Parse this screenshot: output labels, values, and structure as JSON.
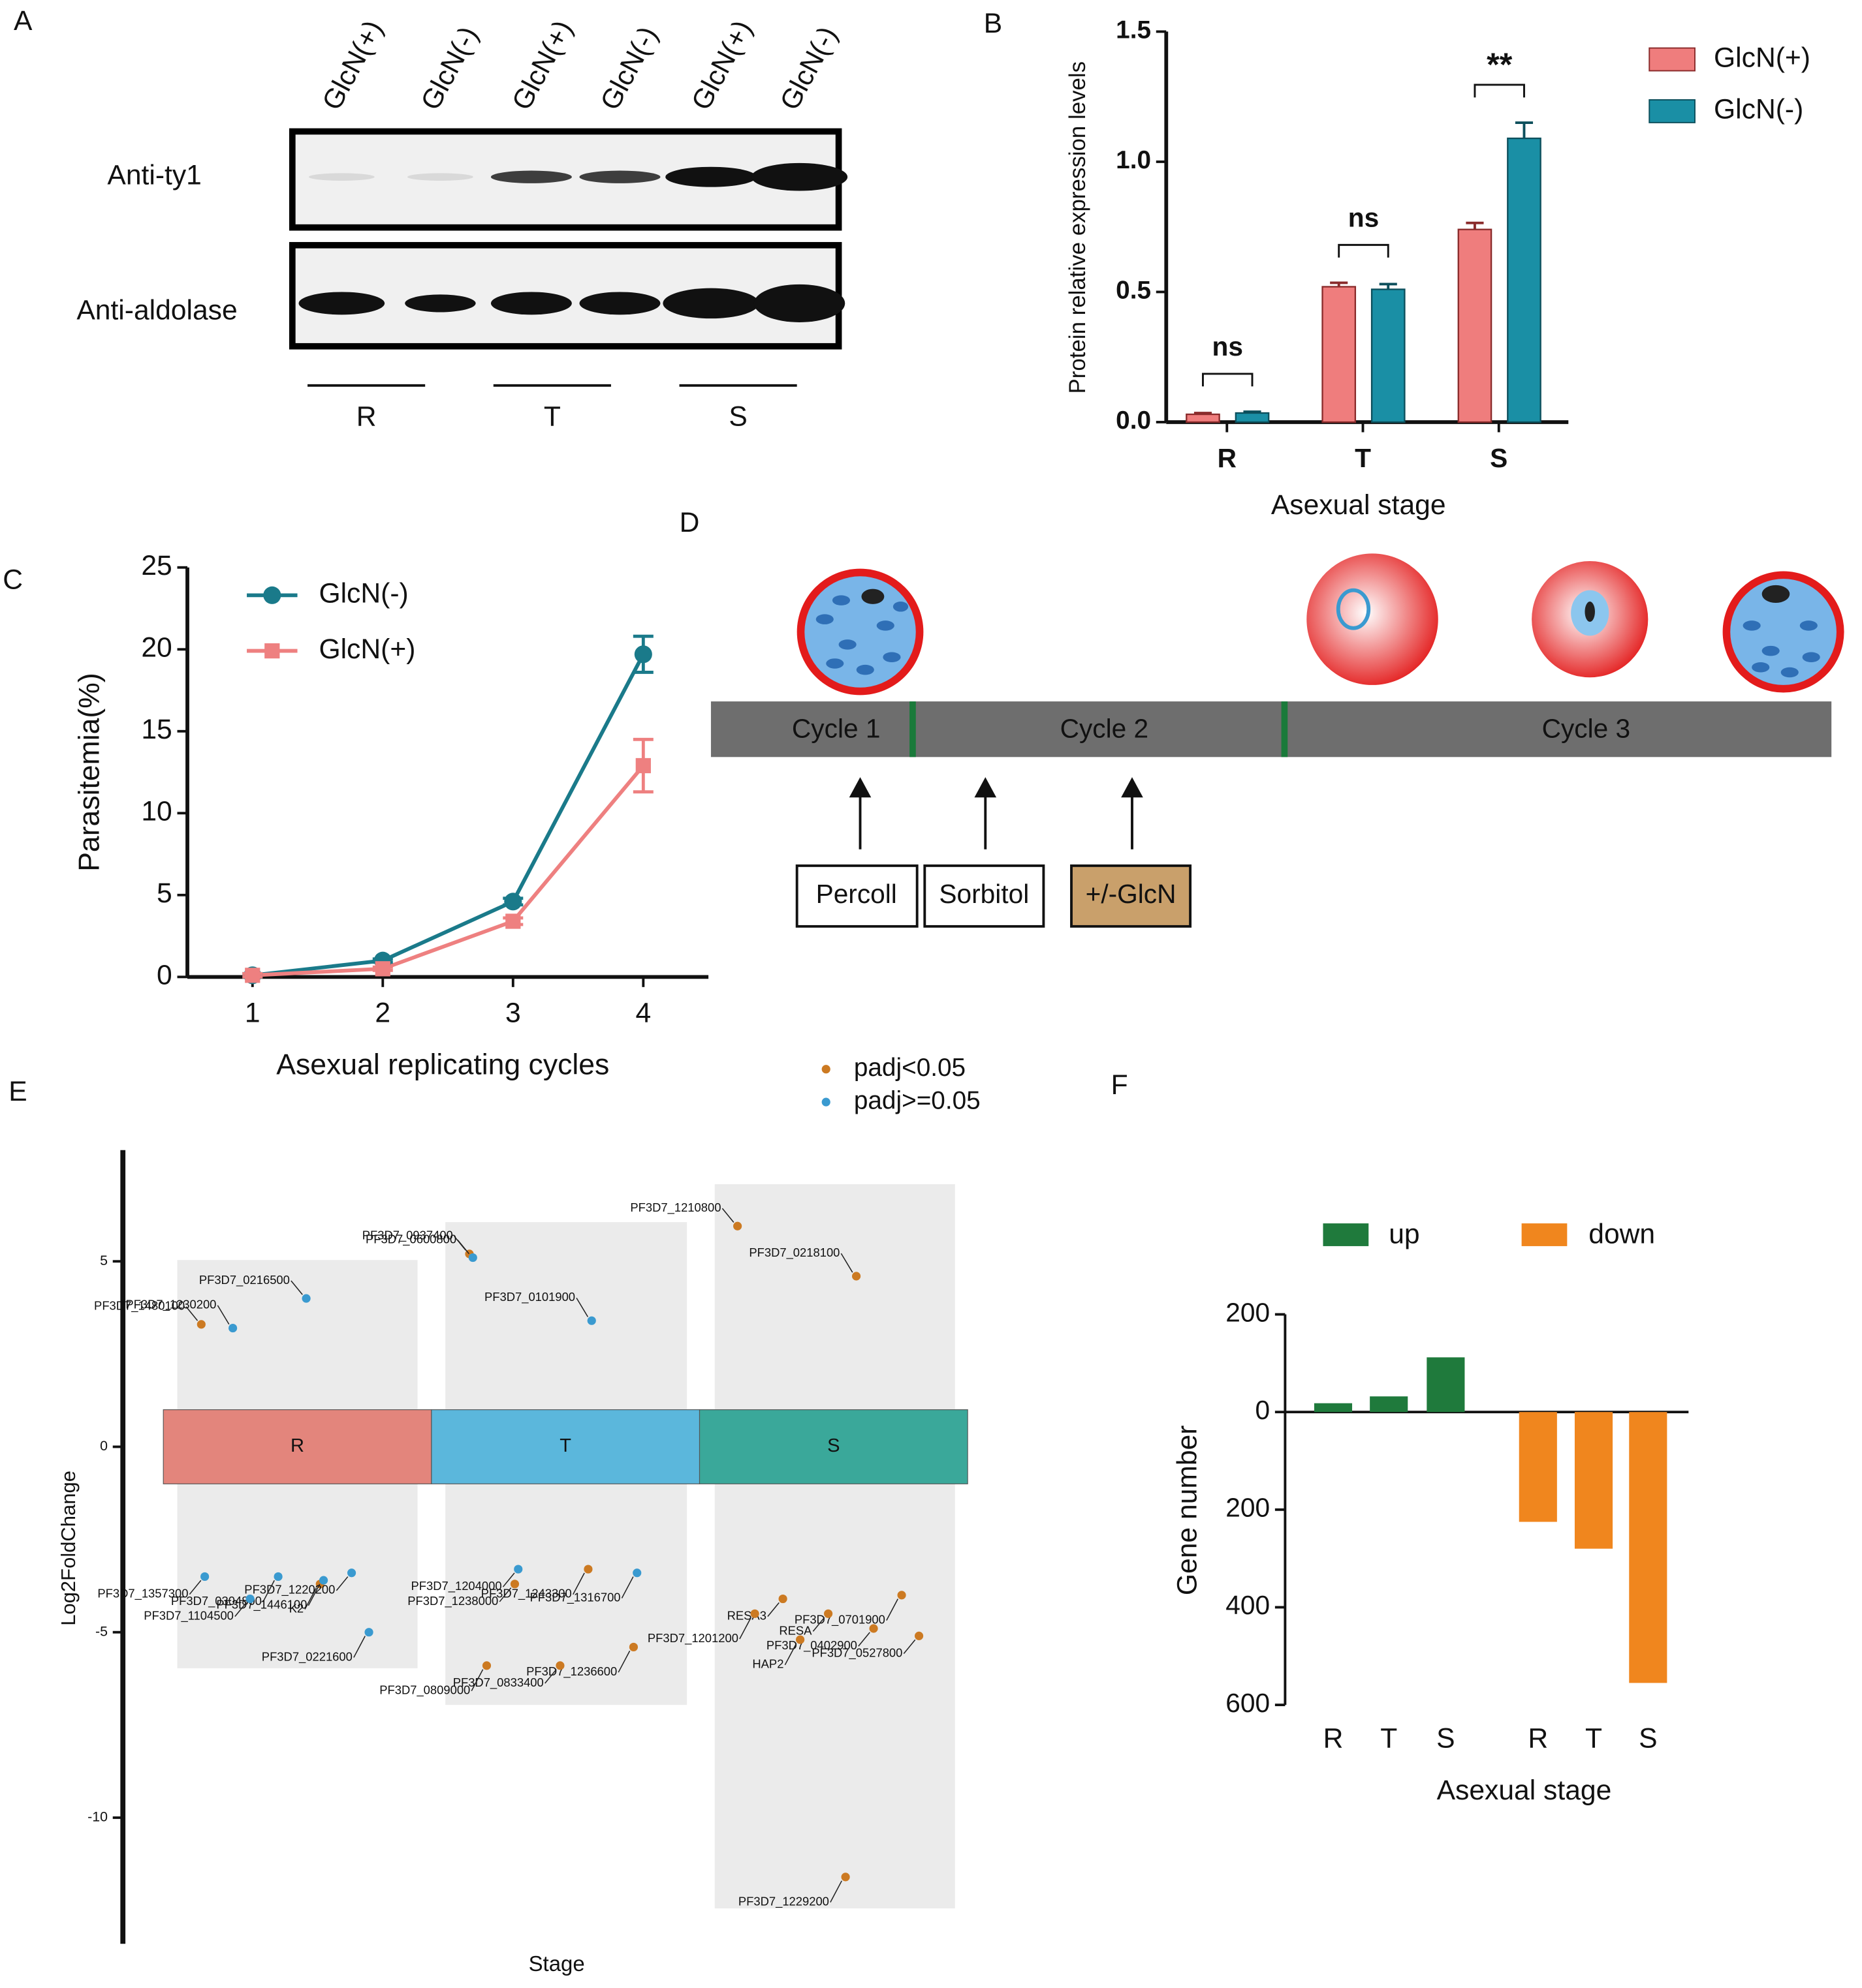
{
  "panels": [
    "A",
    "B",
    "C",
    "D",
    "E",
    "F"
  ],
  "blot": {
    "lanes": [
      "GlcN(+)",
      "GlcN(-)",
      "GlcN(+)",
      "GlcN(-)",
      "GlcN(+)",
      "GlcN(-)"
    ],
    "rows": [
      "Anti-ty1",
      "Anti-aldolase"
    ],
    "groups": [
      "R",
      "T",
      "S"
    ]
  },
  "diagram": {
    "cycles": [
      "Cycle 1",
      "Cycle 2",
      "Cycle 3"
    ],
    "steps": [
      "Percoll",
      "Sorbitol",
      "+/-GlcN"
    ]
  },
  "chart_data": [
    {
      "type": "bar",
      "ylabel": "Protein relative expression levels",
      "xlabel": "Asexual stage",
      "categories": [
        "R",
        "T",
        "S"
      ],
      "series": [
        {
          "name": "GlcN(+)",
          "color": "#ef7d7d",
          "values": [
            0.03,
            0.52,
            0.74
          ],
          "errors": [
            0.005,
            0.015,
            0.025
          ]
        },
        {
          "name": "GlcN(-)",
          "color": "#1a8fa5",
          "values": [
            0.035,
            0.51,
            1.09
          ],
          "errors": [
            0.005,
            0.02,
            0.06
          ]
        }
      ],
      "ylim": [
        0,
        1.5
      ],
      "yticks": [
        {
          "value": 0,
          "label": "0.0"
        },
        0.5,
        {
          "value": 1,
          "label": "1.0"
        },
        1.5
      ],
      "annotations": [
        "ns",
        "ns",
        "**"
      ]
    },
    {
      "type": "line",
      "ylabel": "Parasitemia(%)",
      "xlabel": "Asexual replicating cycles",
      "x": [
        1,
        2,
        3,
        4
      ],
      "series": [
        {
          "name": "GlcN(-)",
          "color": "#1a7a8a",
          "marker": "circle",
          "values": [
            0.1,
            1.0,
            4.6,
            19.7
          ],
          "errors": [
            0.1,
            0.1,
            0.2,
            1.1
          ]
        },
        {
          "name": "GlcN(+)",
          "color": "#ee8080",
          "marker": "square",
          "values": [
            0.1,
            0.5,
            3.4,
            12.9
          ],
          "errors": [
            0.1,
            0.1,
            0.2,
            1.6
          ]
        }
      ],
      "xlim": [
        0.5,
        4.5
      ],
      "xticks": [
        1,
        2,
        3,
        4
      ],
      "ylim": [
        0,
        25
      ],
      "yticks": [
        0,
        5,
        10,
        15,
        20,
        25
      ]
    },
    {
      "type": "scatter",
      "ylabel": "Log2FoldChange",
      "xlabel": "Stage",
      "categories": [
        "R",
        "T",
        "S"
      ],
      "category_colors": [
        "#e3857c",
        "#5bb7dc",
        "#3aa89a"
      ],
      "ylim": [
        -13.4,
        8
      ],
      "yticks": [
        -10,
        -5,
        0,
        5
      ],
      "series": [
        {
          "name": "padj<0.05",
          "color": "#cc7a22",
          "points": [
            {
              "label": "PF3D7_1480100",
              "stage": "R",
              "value": 3.3
            },
            {
              "label": "K2",
              "stage": "R",
              "value": -3.7
            },
            {
              "label": "PF3D7_0937400",
              "stage": "T",
              "value": 5.2
            },
            {
              "label": "PF3D7_1243300",
              "stage": "T",
              "value": -3.3
            },
            {
              "label": "PF3D7_1238000",
              "stage": "T",
              "value": -3.7
            },
            {
              "label": "PF3D7_1236600",
              "stage": "T",
              "value": -5.4
            },
            {
              "label": "PF3D7_0833400",
              "stage": "T",
              "value": -5.9
            },
            {
              "label": "PF3D7_0809000",
              "stage": "T",
              "value": -5.9
            },
            {
              "label": "PF3D7_1210800",
              "stage": "S",
              "value": 5.95
            },
            {
              "label": "PF3D7_0218100",
              "stage": "S",
              "value": 4.6
            },
            {
              "label": "RESA3",
              "stage": "S",
              "value": -4.1
            },
            {
              "label": "PF3D7_0701900",
              "stage": "S",
              "value": -4.0
            },
            {
              "label": "RESA",
              "stage": "S",
              "value": -4.5
            },
            {
              "label": "PF3D7_1201200",
              "stage": "S",
              "value": -4.5
            },
            {
              "label": "PF3D7_0402900",
              "stage": "S",
              "value": -4.9
            },
            {
              "label": "HAP2",
              "stage": "S",
              "value": -5.2
            },
            {
              "label": "PF3D7_0527800",
              "stage": "S",
              "value": -5.1
            },
            {
              "label": "PF3D7_1229200",
              "stage": "S",
              "value": -11.6
            }
          ]
        },
        {
          "name": "padj>=0.05",
          "color": "#3a9ad0",
          "points": [
            {
              "label": "PF3D7_0216500",
              "stage": "R",
              "value": 4.0
            },
            {
              "label": "PF3D7_1230200",
              "stage": "R",
              "value": 3.2
            },
            {
              "label": "PF3D7_1220200",
              "stage": "R",
              "value": -3.4
            },
            {
              "label": "PF3D7_0304800",
              "stage": "R",
              "value": -3.5
            },
            {
              "label": "PF3D7_1357300",
              "stage": "R",
              "value": -3.5
            },
            {
              "label": "PF3D7_1446100",
              "stage": "R",
              "value": -3.6
            },
            {
              "label": "PF3D7_1104500",
              "stage": "R",
              "value": -4.1
            },
            {
              "label": "PF3D7_0221600",
              "stage": "R",
              "value": -5.0
            },
            {
              "label": "PF3D7_0600800",
              "stage": "T",
              "value": 5.1
            },
            {
              "label": "PF3D7_0101900",
              "stage": "T",
              "value": 3.4
            },
            {
              "label": "PF3D7_1204000",
              "stage": "T",
              "value": -3.3
            },
            {
              "label": "PF3D7_1316700",
              "stage": "T",
              "value": -3.4
            }
          ]
        }
      ]
    },
    {
      "type": "bar",
      "ylabel": "Gene number",
      "xlabel": "Asexual stage",
      "categories": [
        "R",
        "T",
        "S",
        "R",
        "T",
        "S"
      ],
      "series": [
        {
          "name": "up",
          "color": "#1f7a3c",
          "values": [
            18,
            32,
            112,
            null,
            null,
            null
          ]
        },
        {
          "name": "down",
          "color": "#f0861e",
          "values": [
            null,
            null,
            null,
            -225,
            -280,
            -555
          ]
        }
      ],
      "ylim": [
        -600,
        200
      ],
      "yticks": [
        200,
        0,
        {
          "value": -200,
          "label": "200"
        },
        {
          "value": -400,
          "label": "400"
        },
        {
          "value": -600,
          "label": "600"
        }
      ]
    }
  ]
}
